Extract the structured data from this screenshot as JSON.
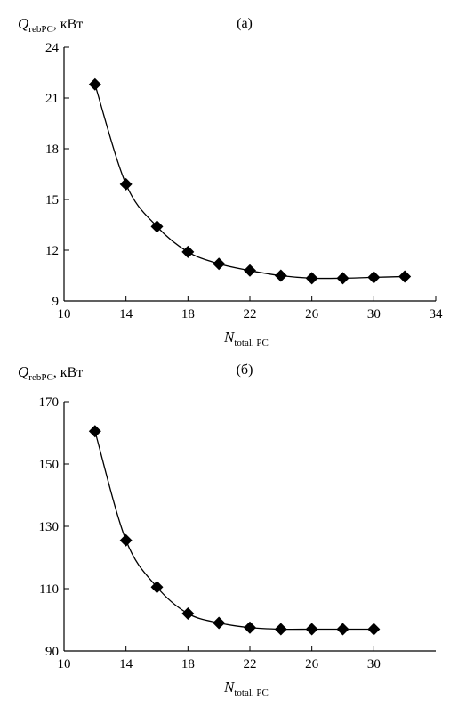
{
  "chart_data": [
    {
      "type": "line",
      "panel_label": "(а)",
      "ylabel": {
        "main": "Q",
        "sub": "rebPC",
        "unit": ", кВт"
      },
      "xlabel": {
        "main": "N",
        "sub": "total. PC"
      },
      "xlim": [
        10,
        34
      ],
      "ylim": [
        9,
        24
      ],
      "xticks": [
        10,
        14,
        18,
        22,
        26,
        30,
        34
      ],
      "yticks": [
        9,
        12,
        15,
        18,
        21,
        24
      ],
      "marker": "diamond",
      "series": [
        {
          "x": [
            12,
            14,
            16,
            18,
            20,
            22,
            24,
            26,
            28,
            30,
            32
          ],
          "y": [
            21.8,
            15.9,
            13.4,
            11.9,
            11.2,
            10.8,
            10.5,
            10.35,
            10.35,
            10.4,
            10.45
          ]
        }
      ]
    },
    {
      "type": "line",
      "panel_label": "(б)",
      "ylabel": {
        "main": "Q",
        "sub": "rebPC",
        "unit": ", кВт"
      },
      "xlabel": {
        "main": "N",
        "sub": "total. PC"
      },
      "xlim": [
        10,
        34
      ],
      "ylim": [
        90,
        170
      ],
      "xticks": [
        10,
        14,
        18,
        22,
        26,
        30
      ],
      "yticks": [
        90,
        110,
        130,
        150,
        170
      ],
      "marker": "diamond",
      "series": [
        {
          "x": [
            12,
            14,
            16,
            18,
            20,
            22,
            24,
            26,
            28,
            30
          ],
          "y": [
            160.5,
            125.5,
            110.5,
            102,
            99,
            97.5,
            97,
            97,
            97,
            97
          ]
        }
      ]
    }
  ]
}
